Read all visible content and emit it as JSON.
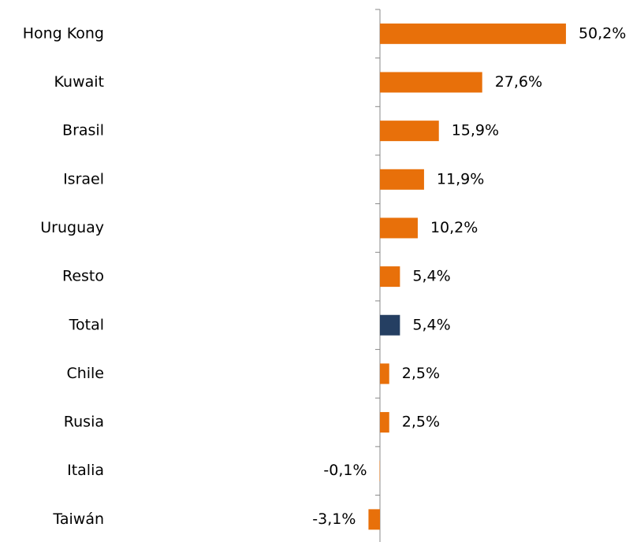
{
  "chart_data": {
    "type": "barh",
    "categories": [
      "Hong Kong",
      "Kuwait",
      "Brasil",
      "Israel",
      "Uruguay",
      "Resto",
      "Total",
      "Chile",
      "Rusia",
      "Italia",
      "Taiwán"
    ],
    "values": [
      50.2,
      27.6,
      15.9,
      11.9,
      10.2,
      5.4,
      5.4,
      2.5,
      2.5,
      -0.1,
      -3.1
    ],
    "value_labels": [
      "50,2%",
      "27,6%",
      "15,9%",
      "11,9%",
      "10,2%",
      "5,4%",
      "5,4%",
      "2,5%",
      "2,5%",
      "-0,1%",
      "-3,1%"
    ],
    "colors": [
      "#e8700a",
      "#e8700a",
      "#e8700a",
      "#e8700a",
      "#e8700a",
      "#e8700a",
      "#253f62",
      "#e8700a",
      "#e8700a",
      "#e8700a",
      "#e8700a"
    ],
    "xlim": [
      -10,
      60
    ]
  }
}
